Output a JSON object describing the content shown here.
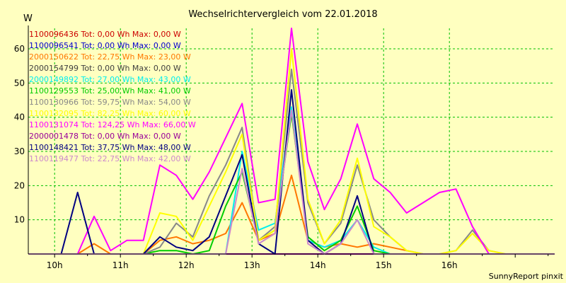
{
  "chart_data": {
    "type": "line",
    "title": "Wechselrichtervergleich vom 22.01.2018",
    "ylabel": "W",
    "xlabel": "",
    "footer": "SunnyReport pinxit",
    "ylim": [
      0,
      66
    ],
    "xlim": [
      9.6,
      17.6
    ],
    "yticks": [
      10,
      20,
      30,
      40,
      50,
      60
    ],
    "xticks": [
      {
        "v": 10,
        "label": "10h"
      },
      {
        "v": 11,
        "label": "11h"
      },
      {
        "v": 12,
        "label": "12h"
      },
      {
        "v": 13,
        "label": "13h"
      },
      {
        "v": 14,
        "label": "14h"
      },
      {
        "v": 15,
        "label": "15h"
      },
      {
        "v": 16,
        "label": "16h"
      }
    ],
    "grid": true,
    "legend_placement": "top-left",
    "x": [
      9.6,
      9.85,
      10.1,
      10.35,
      10.6,
      10.85,
      11.1,
      11.35,
      11.6,
      11.85,
      12.1,
      12.35,
      12.6,
      12.85,
      13.1,
      13.35,
      13.6,
      13.85,
      14.1,
      14.35,
      14.6,
      14.85,
      15.1,
      15.35,
      15.6,
      15.85,
      16.1,
      16.35,
      16.6,
      16.85,
      17.1,
      17.35,
      17.6
    ],
    "series": [
      {
        "name": "1100096436",
        "legend": "1100096436 Tot: 0,00 Wh Max: 0,00 W",
        "color": "#cc0000",
        "values": [
          0,
          0,
          0,
          0,
          0,
          0,
          0,
          0,
          0,
          0,
          0,
          0,
          0,
          0,
          0,
          0,
          0,
          0,
          0,
          0,
          0,
          0,
          0,
          0,
          0,
          0,
          0,
          0,
          0,
          0,
          0,
          0,
          0
        ]
      },
      {
        "name": "1100096541",
        "legend": "1100096541 Tot: 0,00 Wh Max: 0,00 W",
        "color": "#0000cc",
        "values": [
          0,
          0,
          0,
          0,
          0,
          0,
          0,
          0,
          0,
          0,
          0,
          0,
          0,
          0,
          0,
          0,
          0,
          0,
          0,
          0,
          0,
          0,
          0,
          0,
          0,
          0,
          0,
          0,
          0,
          0,
          0,
          0,
          0
        ]
      },
      {
        "name": "2000150622",
        "legend": "2000150622 Tot: 22,75 Wh Max: 23,00 W",
        "color": "#ff7700",
        "values": [
          0,
          0,
          0,
          0,
          3,
          0,
          0,
          0,
          4,
          5,
          3,
          4,
          6,
          15,
          4,
          6,
          23,
          4,
          2,
          3,
          2,
          3,
          2,
          1,
          0,
          0,
          0,
          0,
          0,
          0,
          0,
          0,
          0
        ]
      },
      {
        "name": "2000154799",
        "legend": "2000154799 Tot: 0,00 Wh Max: 0,00 W",
        "color": "#404040",
        "values": [
          0,
          0,
          0,
          0,
          0,
          0,
          0,
          0,
          0,
          0,
          0,
          0,
          0,
          0,
          0,
          0,
          0,
          0,
          0,
          0,
          0,
          0,
          0,
          0,
          0,
          0,
          0,
          0,
          0,
          0,
          0,
          0,
          0
        ]
      },
      {
        "name": "2000149892",
        "legend": "2000149892 Tot: 27,00 Wh Max: 43,00 W",
        "color": "#00eeee",
        "values": [
          0,
          0,
          0,
          0,
          0,
          0,
          0,
          0,
          0,
          0,
          0,
          0,
          0,
          30,
          7,
          9,
          43,
          4,
          2,
          4,
          10,
          2,
          0,
          0,
          0,
          0,
          0,
          0,
          0,
          0,
          0,
          0,
          0
        ]
      },
      {
        "name": "1100129553",
        "legend": "1100129553 Tot: 25,00 Wh Max: 41,00 W",
        "color": "#00cc00",
        "values": [
          0,
          0,
          0,
          0,
          0,
          0,
          0,
          0,
          1,
          1,
          0,
          1,
          14,
          24,
          4,
          7,
          41,
          5,
          1,
          4,
          14,
          1,
          0,
          0,
          0,
          0,
          0,
          0,
          0,
          0,
          0,
          0,
          0
        ]
      },
      {
        "name": "1100130966",
        "legend": "1100130966 Tot: 59,75 Wh Max: 54,00 W",
        "color": "#888888",
        "values": [
          0,
          0,
          0,
          0,
          0,
          0,
          0,
          0,
          2,
          9,
          5,
          17,
          26,
          37,
          4,
          8,
          54,
          15,
          3,
          9,
          26,
          10,
          5,
          1,
          0,
          0,
          1,
          7,
          1,
          0,
          0,
          0,
          0
        ]
      },
      {
        "name": "1100132095",
        "legend": "1100132095 Tot: 82,25 Wh Max: 60,00 W",
        "color": "#ffff00",
        "values": [
          0,
          0,
          0,
          0,
          0,
          0,
          0,
          0,
          12,
          11,
          4,
          14,
          24,
          35,
          4,
          7,
          60,
          16,
          3,
          10,
          28,
          8,
          5,
          1,
          0,
          0,
          1,
          6,
          1,
          0,
          0,
          0,
          0
        ]
      },
      {
        "name": "1100131074",
        "legend": "1100131074 Tot: 124,25 Wh Max: 66,00 W",
        "color": "#ff00ff",
        "values": [
          0,
          0,
          0,
          0,
          11,
          1,
          4,
          4,
          26,
          23,
          16,
          24,
          34,
          44,
          15,
          16,
          66,
          27,
          13,
          22,
          38,
          22,
          18,
          12,
          15,
          18,
          19,
          8,
          0,
          0,
          0,
          0,
          0
        ]
      },
      {
        "name": "2000001478",
        "legend": "2000001478 Tot: 0,00 Wh Max: 0,00 W",
        "color": "#990099",
        "values": [
          0,
          0,
          0,
          0,
          0,
          0,
          0,
          0,
          0,
          0,
          0,
          0,
          0,
          0,
          0,
          0,
          0,
          0,
          0,
          0,
          0,
          0,
          0,
          0,
          0,
          0,
          0,
          0,
          0,
          0,
          0,
          0,
          0
        ]
      },
      {
        "name": "1100148421",
        "legend": "1100148421 Tot: 37,75 Wh Max: 48,00 W",
        "color": "#000080",
        "values": [
          0,
          0,
          0,
          18,
          0,
          0,
          0,
          0,
          5,
          2,
          1,
          5,
          17,
          29,
          3,
          0,
          48,
          4,
          0,
          3,
          17,
          0,
          0,
          0,
          0,
          0,
          0,
          0,
          0,
          0,
          0,
          0,
          0
        ]
      },
      {
        "name": "1100119477",
        "legend": "1100119477 Tot: 22,75 Wh Max: 42,00 W",
        "color": "#cc88cc",
        "values": [
          0,
          0,
          0,
          0,
          0,
          0,
          0,
          0,
          0,
          0,
          0,
          0,
          0,
          25,
          3,
          6,
          42,
          3,
          0,
          3,
          10,
          0,
          0,
          0,
          0,
          0,
          0,
          0,
          0,
          0,
          0,
          0,
          0
        ]
      }
    ]
  }
}
